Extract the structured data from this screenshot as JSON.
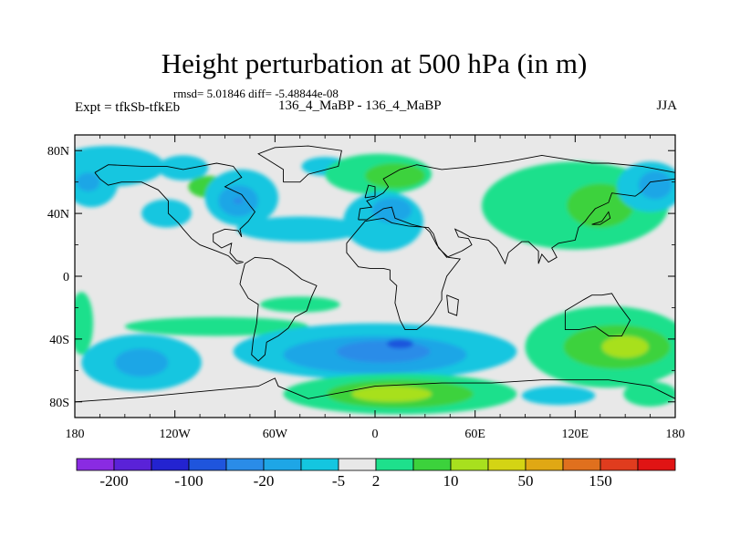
{
  "chart_data": {
    "type": "heatmap",
    "title": "Height perturbation at 500 hPa (in m)",
    "stats_line": "rmsd= 5.01846 diff= -5.48844e-08",
    "left_label": "Expt = tfkSb-tfkEb",
    "center_label": "136_4_MaBP - 136_4_MaBP",
    "right_label": "JJA",
    "xlim": [
      -180,
      180
    ],
    "ylim": [
      -90,
      90
    ],
    "x_ticks": [
      {
        "value": -180,
        "label": "180"
      },
      {
        "value": -120,
        "label": "120W"
      },
      {
        "value": -60,
        "label": "60W"
      },
      {
        "value": 0,
        "label": "0"
      },
      {
        "value": 60,
        "label": "60E"
      },
      {
        "value": 120,
        "label": "120E"
      },
      {
        "value": 180,
        "label": "180"
      }
    ],
    "y_ticks": [
      {
        "value": 80,
        "label": "80N"
      },
      {
        "value": 40,
        "label": "40N"
      },
      {
        "value": 0,
        "label": "0"
      },
      {
        "value": -40,
        "label": "40S"
      },
      {
        "value": -80,
        "label": "80S"
      }
    ],
    "colorbar": {
      "colors": [
        "#8a2be2",
        "#5a22d8",
        "#2323d0",
        "#1f55dd",
        "#2a8ce8",
        "#1ea6e6",
        "#14c6e0",
        "#e8e8e8",
        "#1ee08c",
        "#3cd23c",
        "#a8e01e",
        "#d4d414",
        "#e0a814",
        "#e0701e",
        "#e03c1e",
        "#e01414"
      ],
      "labels": [
        {
          "after_box": 1,
          "text": "-200"
        },
        {
          "after_box": 3,
          "text": "-100"
        },
        {
          "after_box": 5,
          "text": "-20"
        },
        {
          "after_box": 7,
          "text": "-5"
        },
        {
          "after_box": 8,
          "text": "2"
        },
        {
          "after_box": 10,
          "text": "10"
        },
        {
          "after_box": 12,
          "text": "50"
        },
        {
          "after_box": 14,
          "text": "150"
        }
      ]
    },
    "regions": [
      {
        "color": "#14c6e0",
        "lon": -160,
        "lat": 70,
        "rx": 34,
        "ry": 13
      },
      {
        "color": "#14c6e0",
        "lon": -170,
        "lat": 60,
        "rx": 16,
        "ry": 16
      },
      {
        "color": "#1ea6e6",
        "lon": -172,
        "lat": 60,
        "rx": 7,
        "ry": 6
      },
      {
        "color": "#14c6e0",
        "lon": -125,
        "lat": 40,
        "rx": 15,
        "ry": 9
      },
      {
        "color": "#14c6e0",
        "lon": -115,
        "lat": 69,
        "rx": 15,
        "ry": 8
      },
      {
        "color": "#3cd23c",
        "lon": -100,
        "lat": 57,
        "rx": 12,
        "ry": 7
      },
      {
        "color": "#14c6e0",
        "lon": -80,
        "lat": 50,
        "rx": 22,
        "ry": 18
      },
      {
        "color": "#1ea6e6",
        "lon": -82,
        "lat": 48,
        "rx": 12,
        "ry": 10
      },
      {
        "color": "#2a8ce8",
        "lon": -82,
        "lat": 48,
        "rx": 3,
        "ry": 2
      },
      {
        "color": "#14c6e0",
        "lon": -45,
        "lat": 30,
        "rx": 38,
        "ry": 8
      },
      {
        "color": "#14c6e0",
        "lon": -30,
        "lat": 70,
        "rx": 14,
        "ry": 6
      },
      {
        "color": "#1ee08c",
        "lon": 2,
        "lat": 65,
        "rx": 32,
        "ry": 13
      },
      {
        "color": "#3cd23c",
        "lon": 12,
        "lat": 64,
        "rx": 18,
        "ry": 8
      },
      {
        "color": "#14c6e0",
        "lon": 5,
        "lat": 35,
        "rx": 24,
        "ry": 19
      },
      {
        "color": "#1ea6e6",
        "lon": 10,
        "lat": 42,
        "rx": 12,
        "ry": 8
      },
      {
        "color": "#14c6e0",
        "lon": 80,
        "lat": 40,
        "rx": 8,
        "ry": 8
      },
      {
        "color": "#1ee08c",
        "lon": 120,
        "lat": 45,
        "rx": 56,
        "ry": 28
      },
      {
        "color": "#3cd23c",
        "lon": 135,
        "lat": 45,
        "rx": 20,
        "ry": 14
      },
      {
        "color": "#14c6e0",
        "lon": 165,
        "lat": 57,
        "rx": 20,
        "ry": 16
      },
      {
        "color": "#1ea6e6",
        "lon": 168,
        "lat": 58,
        "rx": 10,
        "ry": 9
      },
      {
        "color": "#1ee08c",
        "lon": -176,
        "lat": -30,
        "rx": 7,
        "ry": 20
      },
      {
        "color": "#14c6e0",
        "lon": -140,
        "lat": -55,
        "rx": 36,
        "ry": 18
      },
      {
        "color": "#1ea6e6",
        "lon": -140,
        "lat": -55,
        "rx": 16,
        "ry": 9
      },
      {
        "color": "#1ee08c",
        "lon": -95,
        "lat": -32,
        "rx": 55,
        "ry": 6
      },
      {
        "color": "#1ee08c",
        "lon": -45,
        "lat": -18,
        "rx": 24,
        "ry": 5
      },
      {
        "color": "#14c6e0",
        "lon": 0,
        "lat": -48,
        "rx": 85,
        "ry": 18
      },
      {
        "color": "#1ea6e6",
        "lon": 0,
        "lat": -50,
        "rx": 55,
        "ry": 12
      },
      {
        "color": "#2a8ce8",
        "lon": 5,
        "lat": -48,
        "rx": 28,
        "ry": 7
      },
      {
        "color": "#1f55dd",
        "lon": 15,
        "lat": -43,
        "rx": 8,
        "ry": 3
      },
      {
        "color": "#1ee08c",
        "lon": 15,
        "lat": -75,
        "rx": 70,
        "ry": 13
      },
      {
        "color": "#3cd23c",
        "lon": 15,
        "lat": -75,
        "rx": 44,
        "ry": 9
      },
      {
        "color": "#a8e01e",
        "lon": 10,
        "lat": -75,
        "rx": 24,
        "ry": 5
      },
      {
        "color": "#1ee08c",
        "lon": 140,
        "lat": -45,
        "rx": 50,
        "ry": 26
      },
      {
        "color": "#3cd23c",
        "lon": 145,
        "lat": -45,
        "rx": 32,
        "ry": 14
      },
      {
        "color": "#a8e01e",
        "lon": 150,
        "lat": -45,
        "rx": 14,
        "ry": 7
      },
      {
        "color": "#14c6e0",
        "lon": 110,
        "lat": -76,
        "rx": 22,
        "ry": 6
      },
      {
        "color": "#1ee08c",
        "lon": 165,
        "lat": -75,
        "rx": 16,
        "ry": 8
      }
    ],
    "coastlines": [
      [
        [
          -168,
          66
        ],
        [
          -160,
          71
        ],
        [
          -140,
          70
        ],
        [
          -125,
          70
        ],
        [
          -115,
          68
        ],
        [
          -95,
          72
        ],
        [
          -85,
          70
        ],
        [
          -80,
          63
        ],
        [
          -90,
          57
        ],
        [
          -80,
          52
        ],
        [
          -75,
          45
        ],
        [
          -72,
          41
        ],
        [
          -76,
          35
        ],
        [
          -81,
          30
        ],
        [
          -80,
          25
        ],
        [
          -82,
          29
        ],
        [
          -90,
          30
        ],
        [
          -97,
          27
        ],
        [
          -97,
          22
        ],
        [
          -92,
          18
        ],
        [
          -86,
          21
        ],
        [
          -87,
          15
        ],
        [
          -83,
          10
        ],
        [
          -79,
          9
        ],
        [
          -83,
          8
        ],
        [
          -88,
          13
        ],
        [
          -95,
          16
        ],
        [
          -105,
          20
        ],
        [
          -110,
          24
        ],
        [
          -115,
          30
        ],
        [
          -118,
          34
        ],
        [
          -124,
          40
        ],
        [
          -124,
          48
        ],
        [
          -130,
          55
        ],
        [
          -140,
          60
        ],
        [
          -152,
          60
        ],
        [
          -160,
          58
        ],
        [
          -165,
          62
        ],
        [
          -168,
          66
        ]
      ],
      [
        [
          -55,
          60
        ],
        [
          -45,
          60
        ],
        [
          -40,
          65
        ],
        [
          -22,
          70
        ],
        [
          -20,
          80
        ],
        [
          -40,
          83
        ],
        [
          -60,
          82
        ],
        [
          -70,
          78
        ],
        [
          -55,
          68
        ],
        [
          -55,
          60
        ]
      ],
      [
        [
          -78,
          8
        ],
        [
          -72,
          12
        ],
        [
          -62,
          11
        ],
        [
          -52,
          5
        ],
        [
          -44,
          -2
        ],
        [
          -35,
          -6
        ],
        [
          -38,
          -13
        ],
        [
          -41,
          -22
        ],
        [
          -48,
          -26
        ],
        [
          -52,
          -33
        ],
        [
          -58,
          -38
        ],
        [
          -65,
          -42
        ],
        [
          -66,
          -50
        ],
        [
          -70,
          -54
        ],
        [
          -74,
          -50
        ],
        [
          -73,
          -40
        ],
        [
          -71,
          -30
        ],
        [
          -70,
          -18
        ],
        [
          -76,
          -14
        ],
        [
          -81,
          -5
        ],
        [
          -80,
          0
        ],
        [
          -78,
          8
        ]
      ],
      [
        [
          -10,
          36
        ],
        [
          -9,
          43
        ],
        [
          -2,
          44
        ],
        [
          -5,
          48
        ],
        [
          0,
          50
        ],
        [
          5,
          53
        ],
        [
          8,
          57
        ],
        [
          5,
          62
        ],
        [
          15,
          68
        ],
        [
          25,
          71
        ],
        [
          40,
          68
        ],
        [
          60,
          70
        ],
        [
          80,
          73
        ],
        [
          100,
          77
        ],
        [
          130,
          72
        ],
        [
          140,
          72
        ],
        [
          160,
          70
        ],
        [
          180,
          66
        ]
      ],
      [
        [
          180,
          62
        ],
        [
          165,
          60
        ],
        [
          160,
          54
        ],
        [
          156,
          51
        ],
        [
          142,
          53
        ],
        [
          140,
          47
        ],
        [
          132,
          43
        ],
        [
          128,
          38
        ],
        [
          126,
          35
        ],
        [
          122,
          31
        ],
        [
          120,
          23
        ],
        [
          110,
          21
        ],
        [
          106,
          18
        ],
        [
          109,
          12
        ],
        [
          104,
          9
        ],
        [
          100,
          14
        ],
        [
          98,
          8
        ],
        [
          98,
          16
        ],
        [
          92,
          22
        ],
        [
          88,
          22
        ],
        [
          80,
          15
        ],
        [
          78,
          8
        ],
        [
          73,
          18
        ],
        [
          68,
          23
        ],
        [
          57,
          25
        ],
        [
          52,
          28
        ],
        [
          48,
          30
        ],
        [
          50,
          25
        ],
        [
          56,
          24
        ],
        [
          58,
          20
        ],
        [
          52,
          16
        ],
        [
          43,
          12
        ],
        [
          37,
          20
        ],
        [
          33,
          28
        ],
        [
          30,
          31
        ],
        [
          22,
          33
        ],
        [
          12,
          37
        ],
        [
          10,
          44
        ],
        [
          5,
          43
        ],
        [
          -5,
          36
        ],
        [
          -10,
          36
        ]
      ],
      [
        [
          -17,
          21
        ],
        [
          -17,
          15
        ],
        [
          -10,
          6
        ],
        [
          -3,
          5
        ],
        [
          5,
          5
        ],
        [
          9,
          4
        ],
        [
          9,
          -2
        ],
        [
          13,
          -6
        ],
        [
          12,
          -17
        ],
        [
          15,
          -28
        ],
        [
          18,
          -34
        ],
        [
          25,
          -34
        ],
        [
          32,
          -28
        ],
        [
          35,
          -24
        ],
        [
          40,
          -15
        ],
        [
          40,
          -10
        ],
        [
          43,
          0
        ],
        [
          51,
          11
        ],
        [
          44,
          12
        ],
        [
          38,
          18
        ],
        [
          35,
          27
        ],
        [
          32,
          31
        ],
        [
          20,
          32
        ],
        [
          10,
          34
        ],
        [
          5,
          37
        ],
        [
          -6,
          35
        ],
        [
          -10,
          30
        ],
        [
          -17,
          21
        ]
      ],
      [
        [
          114,
          -22
        ],
        [
          114,
          -34
        ],
        [
          122,
          -34
        ],
        [
          132,
          -32
        ],
        [
          140,
          -38
        ],
        [
          148,
          -38
        ],
        [
          153,
          -28
        ],
        [
          146,
          -18
        ],
        [
          142,
          -11
        ],
        [
          136,
          -12
        ],
        [
          130,
          -12
        ],
        [
          125,
          -15
        ],
        [
          114,
          -22
        ]
      ],
      [
        [
          -180,
          -80
        ],
        [
          -140,
          -77
        ],
        [
          -100,
          -73
        ],
        [
          -70,
          -70
        ],
        [
          -60,
          -65
        ],
        [
          -58,
          -70
        ],
        [
          -40,
          -78
        ],
        [
          0,
          -70
        ],
        [
          40,
          -68
        ],
        [
          70,
          -68
        ],
        [
          100,
          -66
        ],
        [
          140,
          -66
        ],
        [
          165,
          -70
        ],
        [
          180,
          -78
        ]
      ],
      [
        [
          -6,
          50
        ],
        [
          -4,
          58
        ],
        [
          0,
          57
        ],
        [
          0,
          51
        ],
        [
          -6,
          50
        ]
      ],
      [
        [
          130,
          33
        ],
        [
          136,
          35
        ],
        [
          140,
          41
        ],
        [
          141,
          37
        ],
        [
          135,
          33
        ],
        [
          130,
          33
        ]
      ],
      [
        [
          43,
          -12
        ],
        [
          50,
          -15
        ],
        [
          49,
          -25
        ],
        [
          44,
          -23
        ],
        [
          43,
          -12
        ]
      ]
    ]
  }
}
